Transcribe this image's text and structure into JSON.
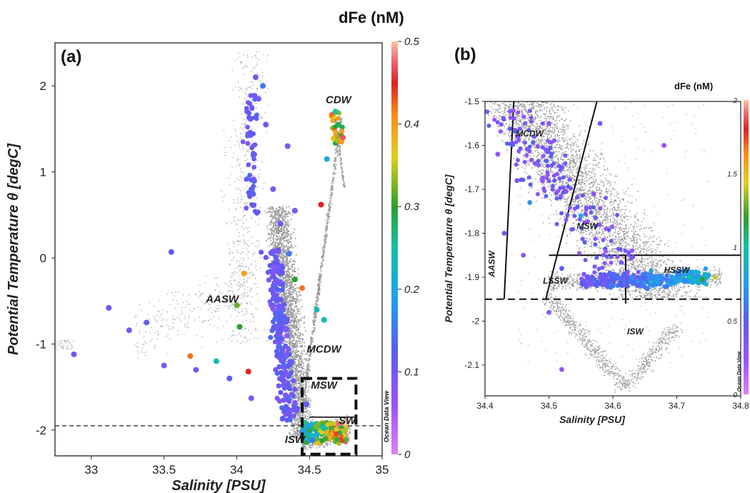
{
  "colorbar_a": {
    "title": "dFe (nM)",
    "ticks": [
      "0",
      "0.1",
      "0.2",
      "0.3",
      "0.4",
      "0.5"
    ],
    "watermark": "Ocean Data View"
  },
  "colorbar_b": {
    "title": "dFe (nM)",
    "ticks": [
      "0",
      "0.5",
      "1",
      "1.5",
      "2"
    ],
    "watermark": "Ocean Data View"
  },
  "chart_data": [
    {
      "type": "scatter",
      "panel_label": "(a)",
      "xlabel": "Salinity [PSU]",
      "ylabel": "Potential Temperature θ [degC]",
      "xlim": [
        32.75,
        35.0
      ],
      "ylim": [
        -2.3,
        2.5
      ],
      "x_ticks": [
        "33",
        "33.5",
        "34",
        "34.5",
        "35"
      ],
      "x_tick_values": [
        33,
        33.5,
        34,
        34.5,
        35
      ],
      "y_ticks": [
        "2",
        "1",
        "0",
        "-1",
        "-2"
      ],
      "y_tick_values": [
        2,
        1,
        0,
        -1,
        -2
      ],
      "colorbar_range": [
        0,
        0.5
      ],
      "water_masses": [
        {
          "name": "CDW",
          "x": 34.7,
          "y": 1.8
        },
        {
          "name": "AASW",
          "x": 33.9,
          "y": -0.52
        },
        {
          "name": "MCDW",
          "x": 34.6,
          "y": -1.1
        },
        {
          "name": "MSW",
          "x": 34.6,
          "y": -1.52
        },
        {
          "name": "SW",
          "x": 34.76,
          "y": -1.93
        },
        {
          "name": "ISW",
          "x": 34.4,
          "y": -2.15
        }
      ],
      "dashed_line_theta": -1.95,
      "inset_box": {
        "salinity": [
          34.45,
          34.82
        ],
        "theta": [
          -2.28,
          -1.4
        ]
      },
      "dfe_samples": [
        {
          "x": 32.88,
          "y": -1.12,
          "v": 0.1
        },
        {
          "x": 33.12,
          "y": -0.58,
          "v": 0.11
        },
        {
          "x": 33.26,
          "y": -0.84,
          "v": 0.1
        },
        {
          "x": 33.38,
          "y": -0.75,
          "v": 0.12
        },
        {
          "x": 33.5,
          "y": -1.25,
          "v": 0.1
        },
        {
          "x": 33.55,
          "y": 0.07,
          "v": 0.12
        },
        {
          "x": 33.68,
          "y": -1.14,
          "v": 0.42
        },
        {
          "x": 33.72,
          "y": -1.3,
          "v": 0.1
        },
        {
          "x": 33.86,
          "y": -1.2,
          "v": 0.24
        },
        {
          "x": 33.95,
          "y": -1.4,
          "v": 0.13
        },
        {
          "x": 34.0,
          "y": -0.55,
          "v": 0.32
        },
        {
          "x": 34.02,
          "y": -0.8,
          "v": 0.3
        },
        {
          "x": 34.05,
          "y": -0.18,
          "v": 0.4
        },
        {
          "x": 34.08,
          "y": -1.32,
          "v": 0.45
        },
        {
          "x": 34.1,
          "y": -1.63,
          "v": 0.1
        },
        {
          "x": 34.13,
          "y": 2.1,
          "v": 0.1
        },
        {
          "x": 34.15,
          "y": 1.85,
          "v": 0.1
        },
        {
          "x": 34.18,
          "y": 2.0,
          "v": 0.15
        },
        {
          "x": 34.2,
          "y": 1.55,
          "v": 0.1
        },
        {
          "x": 34.25,
          "y": 0.8,
          "v": 0.1
        },
        {
          "x": 34.3,
          "y": 0.4,
          "v": 0.1
        },
        {
          "x": 34.35,
          "y": 1.3,
          "v": 0.1
        },
        {
          "x": 34.36,
          "y": 0.05,
          "v": 0.15
        },
        {
          "x": 34.4,
          "y": 0.55,
          "v": 0.1
        },
        {
          "x": 34.4,
          "y": -0.25,
          "v": 0.3
        },
        {
          "x": 34.45,
          "y": -0.35,
          "v": 0.42
        },
        {
          "x": 34.55,
          "y": -0.6,
          "v": 0.23
        },
        {
          "x": 34.58,
          "y": 0.62,
          "v": 0.45
        },
        {
          "x": 34.6,
          "y": -0.72,
          "v": 0.25
        },
        {
          "x": 34.62,
          "y": 1.15,
          "v": 0.2
        },
        {
          "x": 34.68,
          "y": 1.7,
          "v": 0.25
        },
        {
          "x": 34.7,
          "y": 1.55,
          "v": 0.28
        },
        {
          "x": 34.72,
          "y": 1.35,
          "v": 0.4
        },
        {
          "x": 34.73,
          "y": 1.4,
          "v": 0.47
        },
        {
          "x": 34.5,
          "y": -1.95,
          "v": 0.2
        },
        {
          "x": 34.55,
          "y": -2.05,
          "v": 0.22
        },
        {
          "x": 34.6,
          "y": -1.98,
          "v": 0.25
        },
        {
          "x": 34.65,
          "y": -1.92,
          "v": 0.35
        },
        {
          "x": 34.7,
          "y": -1.93,
          "v": 0.48
        },
        {
          "x": 34.75,
          "y": -1.92,
          "v": 0.5
        },
        {
          "x": 34.52,
          "y": -2.12,
          "v": 0.15
        },
        {
          "x": 34.48,
          "y": -1.7,
          "v": 0.12
        }
      ]
    },
    {
      "type": "scatter",
      "panel_label": "(b)",
      "xlabel": "Salinity [PSU]",
      "ylabel": "Potential Temperature θ [degC]",
      "xlim": [
        34.4,
        34.8
      ],
      "ylim": [
        -2.17,
        -1.5
      ],
      "x_ticks": [
        "34.4",
        "34.5",
        "34.6",
        "34.7",
        "34.8"
      ],
      "x_tick_values": [
        34.4,
        34.5,
        34.6,
        34.7,
        34.8
      ],
      "y_ticks": [
        "-1.5",
        "-1.6",
        "-1.7",
        "-1.8",
        "-1.9",
        "-2",
        "-2.1"
      ],
      "y_tick_values": [
        -1.5,
        -1.6,
        -1.7,
        -1.8,
        -1.9,
        -2.0,
        -2.1
      ],
      "colorbar_range": [
        0,
        2
      ],
      "water_masses": [
        {
          "name": "MCDW",
          "x": 34.47,
          "y": -1.58
        },
        {
          "name": "AASW",
          "x": 34.415,
          "y": -1.87
        },
        {
          "name": "MSW",
          "x": 34.56,
          "y": -1.79
        },
        {
          "name": "LSSW",
          "x": 34.51,
          "y": -1.915
        },
        {
          "name": "HSSW",
          "x": 34.7,
          "y": -1.89
        },
        {
          "name": "ISW",
          "x": 34.635,
          "y": -2.03
        }
      ],
      "dashed_line_theta": -1.95,
      "dfe_samples": [
        {
          "x": 34.42,
          "y": -1.62,
          "v": 0.3
        },
        {
          "x": 34.45,
          "y": -1.68,
          "v": 0.35
        },
        {
          "x": 34.47,
          "y": -1.73,
          "v": 0.7
        },
        {
          "x": 34.5,
          "y": -1.55,
          "v": 0.3
        },
        {
          "x": 34.52,
          "y": -1.65,
          "v": 0.4
        },
        {
          "x": 34.55,
          "y": -1.76,
          "v": 0.8
        },
        {
          "x": 34.57,
          "y": -1.71,
          "v": 0.3
        },
        {
          "x": 34.43,
          "y": -1.8,
          "v": 0.4
        },
        {
          "x": 34.46,
          "y": -1.85,
          "v": 0.3
        },
        {
          "x": 34.52,
          "y": -1.88,
          "v": 0.5
        },
        {
          "x": 34.56,
          "y": -1.9,
          "v": 0.4
        },
        {
          "x": 34.6,
          "y": -1.92,
          "v": 0.6
        },
        {
          "x": 34.63,
          "y": -1.9,
          "v": 0.7
        },
        {
          "x": 34.66,
          "y": -1.91,
          "v": 0.9
        },
        {
          "x": 34.7,
          "y": -1.91,
          "v": 0.8
        },
        {
          "x": 34.72,
          "y": -1.9,
          "v": 1.0
        },
        {
          "x": 34.74,
          "y": -1.905,
          "v": 1.2
        },
        {
          "x": 34.76,
          "y": -1.9,
          "v": 1.4
        },
        {
          "x": 34.52,
          "y": -2.11,
          "v": 0.3
        },
        {
          "x": 34.5,
          "y": -1.98,
          "v": 0.3
        },
        {
          "x": 34.58,
          "y": -1.55,
          "v": 0.4
        },
        {
          "x": 34.68,
          "y": -1.6,
          "v": 0.3
        }
      ]
    }
  ]
}
